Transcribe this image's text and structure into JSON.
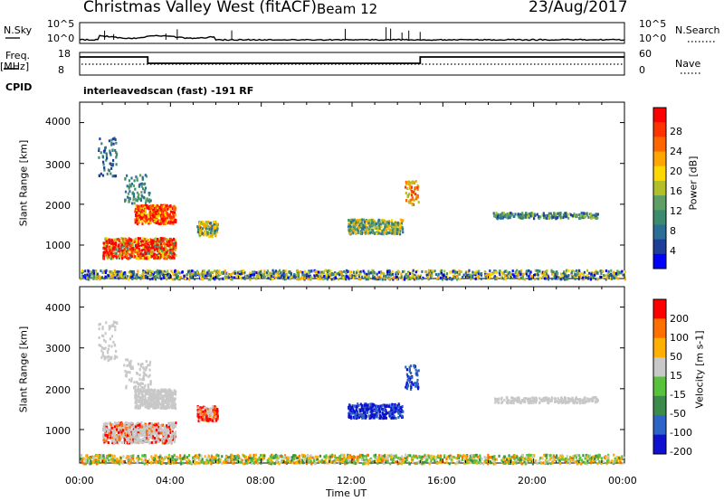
{
  "header": {
    "site": "Christmas Valley West (fitACF)",
    "beam": "Beam 12",
    "date": "23/Aug/2017"
  },
  "status_strip": {
    "nsky_label": "N.Sky",
    "nsky_ticks": [
      "10^5",
      "10^0"
    ],
    "nsearch_label": "N.Search",
    "nsearch_ticks": [
      "10^5",
      "10^0"
    ],
    "freq_label": "Freq.",
    "freq_unit": "[MHz]",
    "freq_ticks": [
      "18",
      "8"
    ],
    "nave_label": "Nave",
    "nave_ticks": [
      "60",
      "0"
    ],
    "cpid_label": "CPID",
    "cpid_value": "interleavedscan (fast) -191 RF"
  },
  "x_axis": {
    "label": "Time UT",
    "ticks": [
      "00:00",
      "04:00",
      "08:00",
      "12:00",
      "16:00",
      "20:00",
      "00:00"
    ]
  },
  "chart_data": [
    {
      "type": "line",
      "name": "frequency",
      "x": [
        0,
        3,
        3,
        15,
        15,
        24
      ],
      "y": [
        16,
        16,
        13.2,
        13.2,
        16,
        16
      ],
      "ylim": [
        8,
        18
      ],
      "xlim": [
        0,
        24
      ]
    },
    {
      "type": "heatmap",
      "ylabel": "Slant Range [km]",
      "y_ticks": [
        "4000",
        "3000",
        "2000",
        "1000"
      ],
      "ylim": [
        180,
        4500
      ],
      "xlim": [
        0,
        24
      ],
      "colorbar": {
        "label": "Power [dB]",
        "ticks": [
          "28",
          "24",
          "20",
          "16",
          "12",
          "8",
          "4"
        ],
        "colors": [
          "#0000ff",
          "#1d3f9a",
          "#2d6e96",
          "#3d8b6e",
          "#5ea063",
          "#b3bf28",
          "#ffd700",
          "#ffa500",
          "#ff6600",
          "#ff3300",
          "#ff0000"
        ]
      }
    },
    {
      "type": "heatmap",
      "ylabel": "Slant Range [km]",
      "y_ticks": [
        "4000",
        "3000",
        "2000",
        "1000"
      ],
      "ylim": [
        180,
        4500
      ],
      "xlim": [
        0,
        24
      ],
      "colorbar": {
        "label": "Velocity [m s-1]",
        "ticks": [
          "200",
          "100",
          "50",
          "15",
          "-15",
          "-50",
          "-100",
          "-200"
        ],
        "colors": [
          "#1010d0",
          "#2e64c8",
          "#3b8b4b",
          "#57c23c",
          "#c8c8c8",
          "#ffb000",
          "#ff7000",
          "#ff0000"
        ]
      }
    }
  ]
}
